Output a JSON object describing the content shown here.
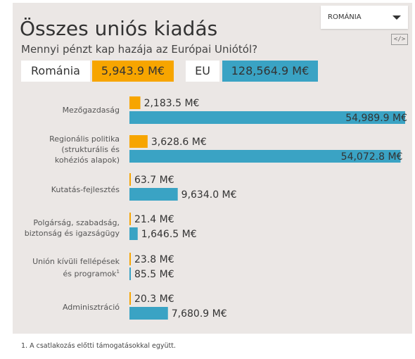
{
  "header": {
    "title": "Összes uniós kiadás",
    "subtitle": "Mennyi pénzt kap hazája az Európai Uniótól?"
  },
  "selector": {
    "selected": "ROMÁNIA"
  },
  "embed": {
    "label": "</>"
  },
  "totals": {
    "country_label": "Románia",
    "country_value": "5,943.9 M€",
    "eu_label": "EU",
    "eu_value": "128,564.9 M€"
  },
  "colors": {
    "country": "#f7a500",
    "eu": "#3aa3c4"
  },
  "footnote": "1. A csatlakozás előtti támogatásokkal együtt.",
  "chart_data": {
    "type": "bar",
    "orientation": "horizontal",
    "categories": [
      "Mezőgazdaság",
      "Regionális politika (strukturális és kohéziós alapok)",
      "Kutatás-fejlesztés",
      "Polgárság, szabadság, biztonság és igazságügy",
      "Unión kívüli fellépések és programok",
      "Adminisztráció"
    ],
    "category_lines": [
      [
        "Mezőgazdaság"
      ],
      [
        "Regionális politika",
        "(strukturális és",
        "kohéziós alapok)"
      ],
      [
        "Kutatás-fejlesztés"
      ],
      [
        "Polgárság, szabadság,",
        "biztonság és igazságügy"
      ],
      [
        "Unión kívüli fellépések",
        "és programok"
      ],
      [
        "Adminisztráció"
      ]
    ],
    "category_footnote_marks": [
      "",
      "",
      "",
      "",
      "1",
      ""
    ],
    "series": [
      {
        "name": "Románia",
        "values": [
          2183.5,
          3628.6,
          63.7,
          21.4,
          23.8,
          20.3
        ],
        "labels": [
          "2,183.5 M€",
          "3,628.6 M€",
          "63.7 M€",
          "21.4 M€",
          "23.8 M€",
          "20.3 M€"
        ]
      },
      {
        "name": "EU",
        "values": [
          54989.9,
          54072.8,
          9634.0,
          1646.5,
          85.5,
          7680.9
        ],
        "labels": [
          "54,989.9 M€",
          "54,072.8 M€",
          "9,634.0 M€",
          "1,646.5 M€",
          "85.5 M€",
          "7,680.9 M€"
        ]
      }
    ],
    "xlim": [
      0,
      54989.9
    ],
    "unit": "M€"
  }
}
